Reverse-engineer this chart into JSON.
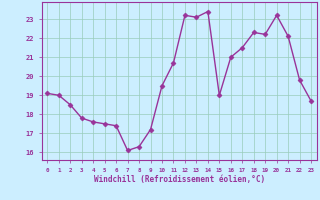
{
  "x": [
    0,
    1,
    2,
    3,
    4,
    5,
    6,
    7,
    8,
    9,
    10,
    11,
    12,
    13,
    14,
    15,
    16,
    17,
    18,
    19,
    20,
    21,
    22,
    23
  ],
  "y": [
    19.1,
    19.0,
    18.5,
    17.8,
    17.6,
    17.5,
    17.4,
    16.1,
    16.3,
    17.2,
    19.5,
    20.7,
    23.2,
    23.1,
    23.4,
    19.0,
    21.0,
    21.5,
    22.3,
    22.2,
    23.2,
    22.1,
    19.8,
    18.7
  ],
  "line_color": "#993399",
  "marker": "D",
  "markersize": 2.5,
  "linewidth": 1.0,
  "bg_color": "#cceeff",
  "grid_color": "#99ccbb",
  "xlabel": "Windchill (Refroidissement éolien,°C)",
  "xlabel_color": "#993399",
  "tick_color": "#993399",
  "spine_color": "#993399",
  "ylabel_ticks": [
    16,
    17,
    18,
    19,
    20,
    21,
    22,
    23
  ],
  "xlim": [
    -0.5,
    23.5
  ],
  "ylim": [
    15.6,
    23.9
  ]
}
